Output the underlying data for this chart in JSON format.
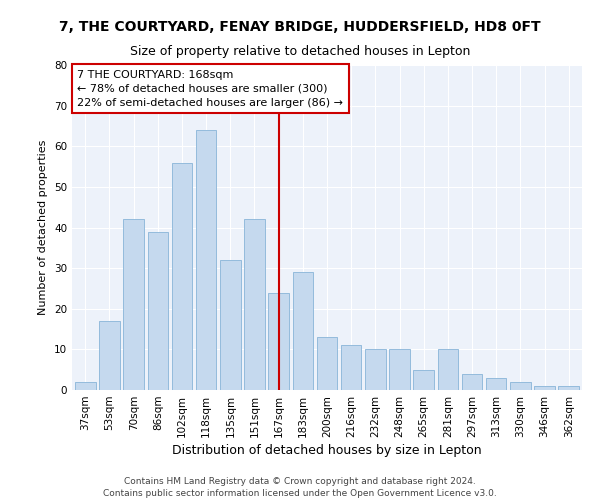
{
  "title1": "7, THE COURTYARD, FENAY BRIDGE, HUDDERSFIELD, HD8 0FT",
  "title2": "Size of property relative to detached houses in Lepton",
  "xlabel": "Distribution of detached houses by size in Lepton",
  "ylabel": "Number of detached properties",
  "categories": [
    "37sqm",
    "53sqm",
    "70sqm",
    "86sqm",
    "102sqm",
    "118sqm",
    "135sqm",
    "151sqm",
    "167sqm",
    "183sqm",
    "200sqm",
    "216sqm",
    "232sqm",
    "248sqm",
    "265sqm",
    "281sqm",
    "297sqm",
    "313sqm",
    "330sqm",
    "346sqm",
    "362sqm"
  ],
  "values": [
    2,
    17,
    42,
    39,
    56,
    64,
    32,
    42,
    24,
    29,
    13,
    11,
    10,
    10,
    5,
    10,
    4,
    3,
    2,
    1,
    1
  ],
  "bar_color": "#c5d9ee",
  "bar_edgecolor": "#88b4d8",
  "marker_index": 8,
  "marker_color": "#cc0000",
  "annotation_title": "7 THE COURTYARD: 168sqm",
  "annotation_line1": "← 78% of detached houses are smaller (300)",
  "annotation_line2": "22% of semi-detached houses are larger (86) →",
  "annotation_box_edgecolor": "#cc0000",
  "annotation_bg": "#ffffff",
  "ylim": [
    0,
    80
  ],
  "yticks": [
    0,
    10,
    20,
    30,
    40,
    50,
    60,
    70,
    80
  ],
  "footer1": "Contains HM Land Registry data © Crown copyright and database right 2024.",
  "footer2": "Contains public sector information licensed under the Open Government Licence v3.0.",
  "bg_color": "#edf2fa",
  "grid_color": "#ffffff",
  "title1_fontsize": 10,
  "title2_fontsize": 9,
  "xlabel_fontsize": 9,
  "ylabel_fontsize": 8,
  "tick_fontsize": 7.5,
  "annotation_fontsize": 8,
  "footer_fontsize": 6.5
}
